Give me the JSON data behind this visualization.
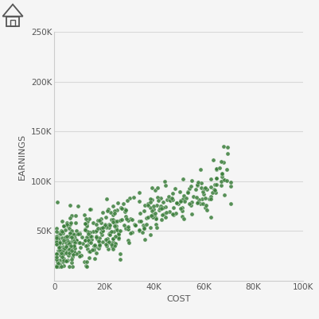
{
  "title": "",
  "xlabel": "COST",
  "ylabel": "EARNINGS",
  "xlim": [
    0,
    100000
  ],
  "ylim": [
    0,
    250000
  ],
  "xticks": [
    0,
    20000,
    40000,
    60000,
    80000,
    100000
  ],
  "yticks": [
    50000,
    100000,
    150000,
    200000,
    250000
  ],
  "dot_color": "#3a7d3a",
  "dot_size": 14,
  "dot_alpha": 0.85,
  "background_color": "#f5f5f5",
  "grid_color": "#d8d8d8",
  "seed": 42,
  "n_points": 480,
  "figsize": [
    4.01,
    4.01
  ],
  "dpi": 100
}
